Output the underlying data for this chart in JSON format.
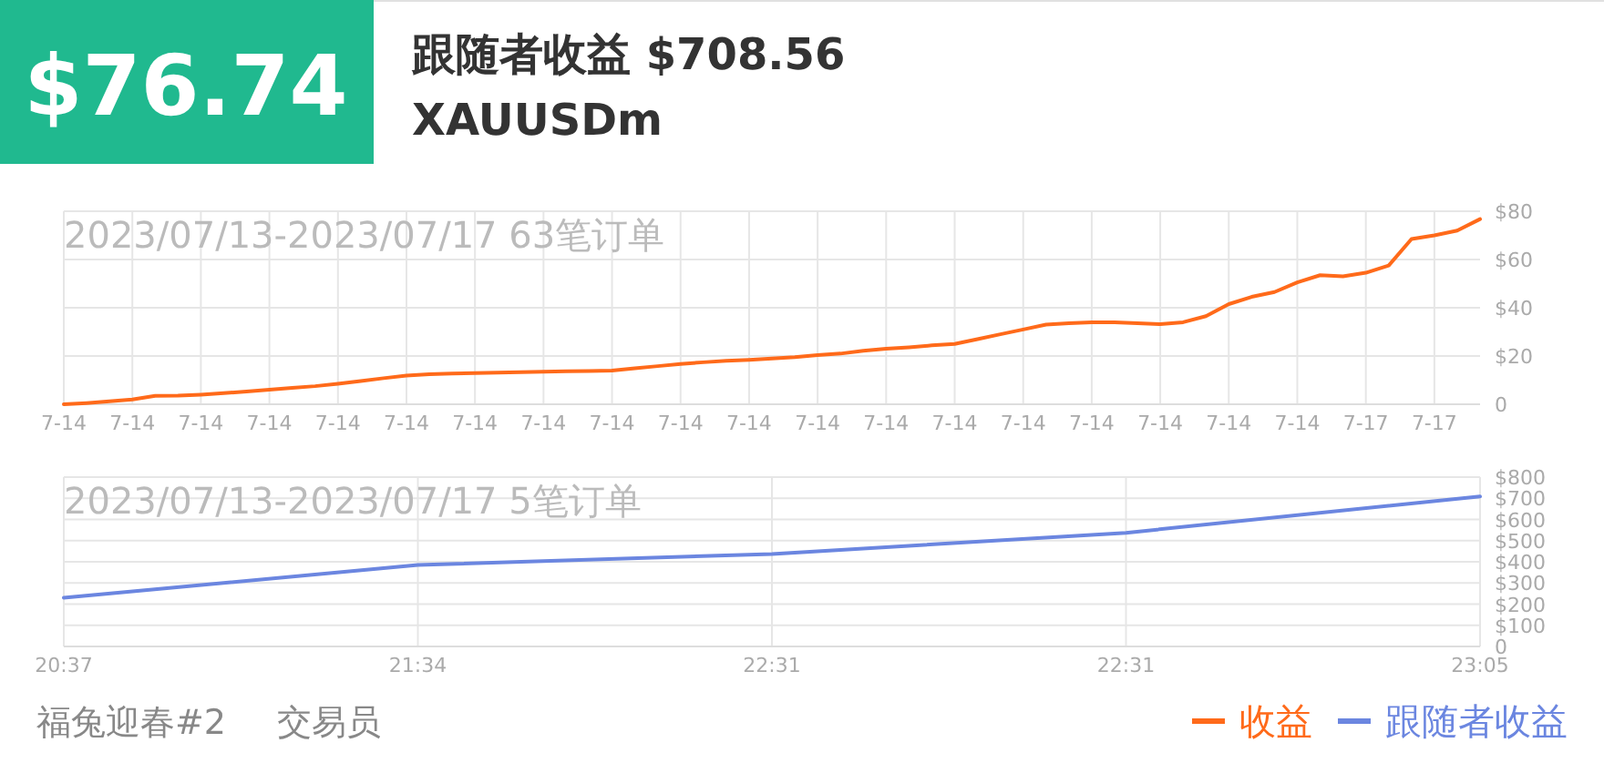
{
  "chart_data": [
    {
      "type": "other",
      "title": "$76.74",
      "subtitle": "跟随者收益 $708.56",
      "annotations": [
        "XAUUSDm"
      ],
      "color": "#20b98f"
    },
    {
      "type": "line",
      "title": "2023/07/13-2023/07/17 63笔订单",
      "categories": [
        "7-14",
        null,
        null,
        "7-14",
        null,
        null,
        "7-14",
        null,
        null,
        "7-14",
        null,
        null,
        "7-14",
        null,
        null,
        "7-14",
        null,
        null,
        "7-14",
        null,
        null,
        "7-14",
        null,
        null,
        "7-14",
        null,
        null,
        "7-14",
        null,
        null,
        "7-14",
        null,
        null,
        "7-14",
        null,
        null,
        "7-14",
        null,
        null,
        "7-14",
        null,
        null,
        "7-14",
        null,
        null,
        "7-14",
        null,
        null,
        "7-14",
        null,
        null,
        "7-14",
        null,
        null,
        "7-14",
        null,
        null,
        "7-17",
        null,
        null,
        "7-17",
        null,
        null
      ],
      "series": [
        {
          "name": "收益",
          "color": "#ff6a1a",
          "values": [
            0,
            0.5,
            1.2,
            2,
            3.5,
            3.6,
            4,
            4.6,
            5.3,
            6,
            6.8,
            7.5,
            8.5,
            9.6,
            10.8,
            11.9,
            12.5,
            12.7,
            12.9,
            13.1,
            13.3,
            13.5,
            13.7,
            13.8,
            14,
            14.9,
            15.8,
            16.7,
            17.4,
            18,
            18.4,
            19,
            19.5,
            20.4,
            21,
            22.2,
            23,
            23.6,
            24.4,
            25,
            27,
            29,
            31,
            33,
            33.6,
            34,
            34,
            33.6,
            33.2,
            34,
            36.5,
            41.5,
            44.5,
            46.5,
            50.5,
            53.5,
            53,
            54.5,
            57.5,
            68.5,
            70,
            72,
            76.74
          ]
        }
      ],
      "ylim": [
        0,
        80
      ],
      "yticks": [
        0,
        {
          "value": 20,
          "label": "$20"
        },
        {
          "value": 40,
          "label": "$40"
        },
        {
          "value": 60,
          "label": "$60"
        },
        {
          "value": 80,
          "label": "$80"
        }
      ],
      "grid": true,
      "marker": "none",
      "legend": "bottom right"
    },
    {
      "type": "line",
      "title": "2023/07/13-2023/07/17 5笔订单",
      "categories": [
        "20:37",
        "21:34",
        "22:31",
        "22:31",
        "23:05"
      ],
      "series": [
        {
          "name": "跟随者收益",
          "color": "#6b86e0",
          "values": [
            230,
            385,
            437,
            537,
            708.56
          ]
        }
      ],
      "ylim": [
        0,
        800
      ],
      "yticks": [
        0,
        {
          "value": 100,
          "label": "$100"
        },
        {
          "value": 200,
          "label": "$200"
        },
        {
          "value": 300,
          "label": "$300"
        },
        {
          "value": 400,
          "label": "$400"
        },
        {
          "value": 500,
          "label": "$500"
        },
        {
          "value": 600,
          "label": "$600"
        },
        {
          "value": 700,
          "label": "$700"
        },
        {
          "value": 800,
          "label": "$800"
        }
      ],
      "grid": true,
      "marker": "none",
      "legend": "bottom right"
    },
    {
      "type": "other",
      "annotations": [
        "福兔迎春#2",
        "交易员"
      ]
    }
  ]
}
